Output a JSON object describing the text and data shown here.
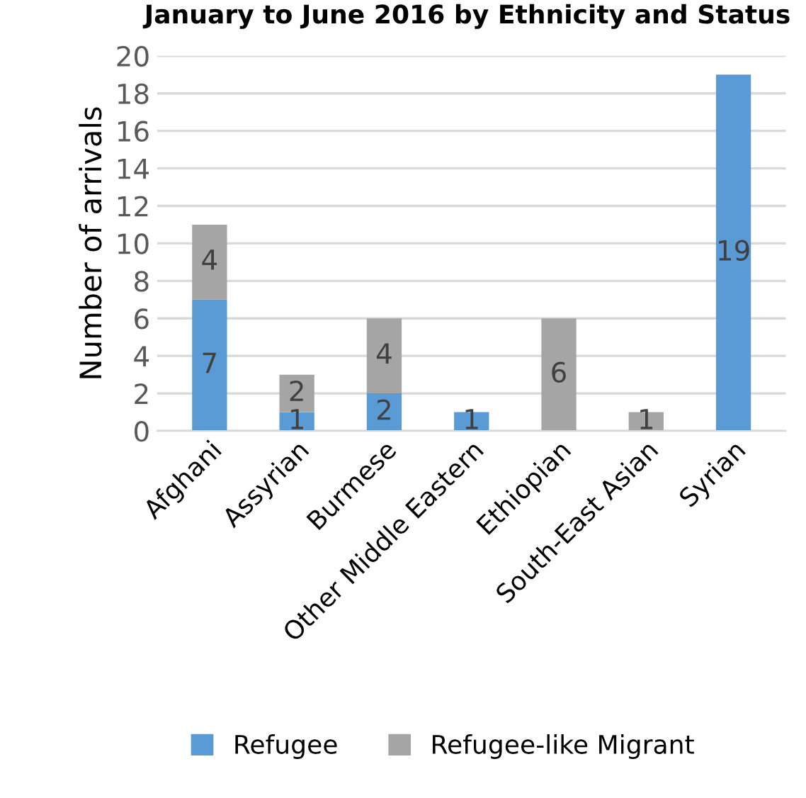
{
  "chart_data": {
    "type": "bar",
    "stacked": true,
    "title": "January to June 2016 by Ethnicity and Status",
    "ylabel": "Number of arrivals",
    "categories": [
      "Afghani",
      "Assyrian",
      "Burmese",
      "Other Middle Eastern",
      "Ethiopian",
      "South-East Asian",
      "Syrian"
    ],
    "series": [
      {
        "name": "Refugee",
        "color": "#5b9bd5",
        "values": [
          7,
          1,
          2,
          1,
          0,
          0,
          19
        ],
        "value_labels": [
          "7",
          "1",
          "2",
          "1",
          null,
          null,
          "19"
        ]
      },
      {
        "name": "Refugee-like Migrant",
        "color": "#a5a5a5",
        "values": [
          4,
          2,
          4,
          0,
          6,
          1,
          0
        ],
        "value_labels": [
          "4",
          "2",
          "4",
          null,
          "6",
          "1",
          null
        ]
      }
    ],
    "ylim": [
      0,
      20
    ],
    "yticks": [
      0,
      2,
      4,
      6,
      8,
      10,
      12,
      14,
      16,
      18,
      20
    ],
    "grid": "y",
    "legend": "bottom"
  }
}
